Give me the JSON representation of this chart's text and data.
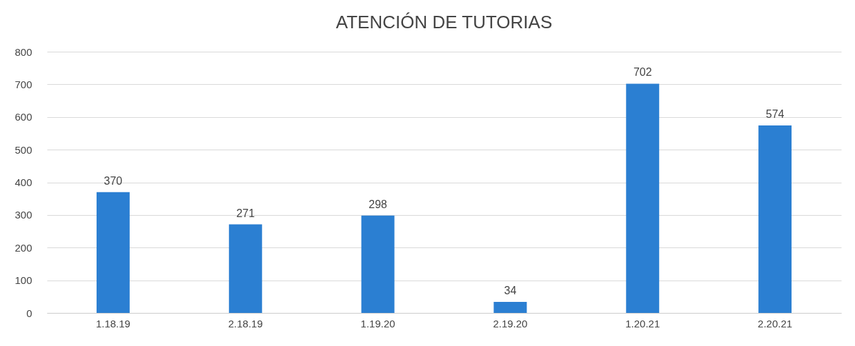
{
  "chart_data": {
    "type": "bar",
    "title": "ATENCIÓN DE TUTORIAS",
    "categories": [
      "1.18.19",
      "2.18.19",
      "1.19.20",
      "2.19.20",
      "1.20.21",
      "2.20.21"
    ],
    "values": [
      370,
      271,
      298,
      34,
      702,
      574
    ],
    "color": "#2b7fd2",
    "ylim": [
      0,
      800
    ],
    "yticks": [
      0,
      100,
      200,
      300,
      400,
      500,
      600,
      700,
      800
    ],
    "grid": "y",
    "data_labels": true
  }
}
